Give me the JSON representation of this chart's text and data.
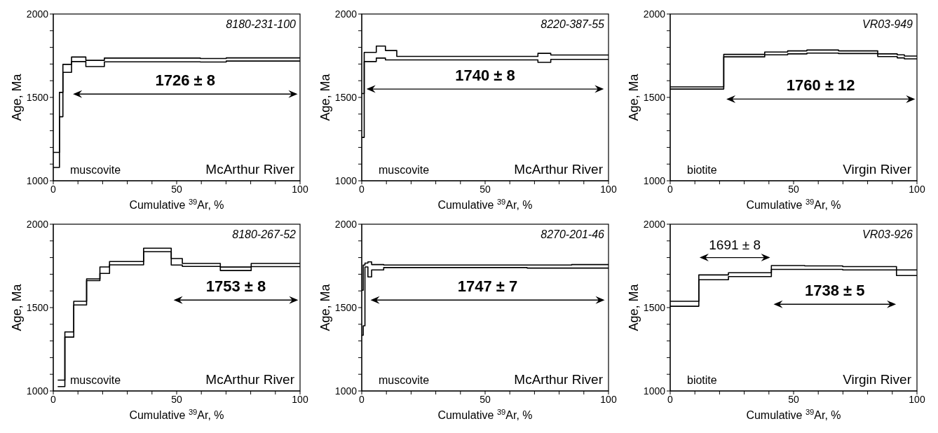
{
  "chart_data": [
    {
      "type": "step",
      "title": "8180-231-100",
      "xlabel": "Cumulative $^{39}$Ar, %",
      "ylabel": "Age, Ma",
      "xlim": [
        0,
        100
      ],
      "xticks": [
        0,
        {
          "value": 10,
          "label": null
        },
        {
          "value": 20,
          "label": null
        },
        {
          "value": 30,
          "label": null
        },
        {
          "value": 40,
          "label": null
        },
        50,
        {
          "value": 60,
          "label": null
        },
        {
          "value": 70,
          "label": null
        },
        {
          "value": 80,
          "label": null
        },
        {
          "value": 90,
          "label": null
        },
        100
      ],
      "ylim": [
        1000,
        2000
      ],
      "yticks": [
        1000,
        {
          "value": 1100,
          "label": null
        },
        {
          "value": 1200,
          "label": null
        },
        {
          "value": 1300,
          "label": null
        },
        {
          "value": 1400,
          "label": null
        },
        1500,
        {
          "value": 1600,
          "label": null
        },
        {
          "value": 1700,
          "label": null
        },
        {
          "value": 1800,
          "label": null
        },
        {
          "value": 1900,
          "label": null
        },
        2000
      ],
      "grid": false,
      "legend": false,
      "marker": "none",
      "line_style": "solid",
      "x": [
        0,
        2.5,
        3.9,
        7.4,
        13.2,
        20.7,
        59.6,
        70.1,
        100
      ],
      "series": [
        {
          "color": "#000000",
          "values": [
            1170,
            1530,
            1698,
            1742,
            1722,
            1736,
            1733,
            1737,
            1737
          ]
        },
        {
          "color": "#000000",
          "values": [
            1080,
            1384,
            1650,
            1715,
            1685,
            1713,
            1712,
            1718,
            1718
          ]
        }
      ],
      "annotations": [
        "muscovite",
        "McArthur River",
        "1726 ± 8"
      ]
    },
    {
      "type": "step",
      "title": "8220-387-55",
      "xlabel": "Cumulative $^{39}$Ar, %",
      "ylabel": "Age, Ma",
      "xlim": [
        0,
        100
      ],
      "xticks": [
        0,
        {
          "value": 10,
          "label": null
        },
        {
          "value": 20,
          "label": null
        },
        {
          "value": 30,
          "label": null
        },
        {
          "value": 40,
          "label": null
        },
        50,
        {
          "value": 60,
          "label": null
        },
        {
          "value": 70,
          "label": null
        },
        {
          "value": 80,
          "label": null
        },
        {
          "value": 90,
          "label": null
        },
        100
      ],
      "ylim": [
        1000,
        2000
      ],
      "yticks": [
        1000,
        {
          "value": 1100,
          "label": null
        },
        {
          "value": 1200,
          "label": null
        },
        {
          "value": 1300,
          "label": null
        },
        {
          "value": 1400,
          "label": null
        },
        1500,
        {
          "value": 1600,
          "label": null
        },
        {
          "value": 1700,
          "label": null
        },
        {
          "value": 1800,
          "label": null
        },
        {
          "value": 1900,
          "label": null
        },
        2000
      ],
      "grid": false,
      "legend": false,
      "marker": "none",
      "line_style": "solid",
      "x": [
        0,
        1,
        5.9,
        9.6,
        14.2,
        71.4,
        76.6,
        100
      ],
      "series": [
        {
          "color": "#000000",
          "values": [
            1523,
            1770,
            1808,
            1781,
            1746,
            1764,
            1754,
            1754
          ]
        },
        {
          "color": "#000000",
          "values": [
            1260,
            1715,
            1736,
            1725,
            1725,
            1710,
            1728,
            1728
          ]
        }
      ],
      "annotations": [
        "muscovite",
        "McArthur River",
        "1740 ± 8"
      ]
    },
    {
      "type": "step",
      "title": "VR03-949",
      "xlabel": "Cumulative $^{39}$Ar, %",
      "ylabel": "Age, Ma",
      "xlim": [
        0,
        100
      ],
      "xticks": [
        0,
        {
          "value": 10,
          "label": null
        },
        {
          "value": 20,
          "label": null
        },
        {
          "value": 30,
          "label": null
        },
        {
          "value": 40,
          "label": null
        },
        50,
        {
          "value": 60,
          "label": null
        },
        {
          "value": 70,
          "label": null
        },
        {
          "value": 80,
          "label": null
        },
        {
          "value": 90,
          "label": null
        },
        100
      ],
      "ylim": [
        1000,
        2000
      ],
      "yticks": [
        1000,
        {
          "value": 1100,
          "label": null
        },
        {
          "value": 1200,
          "label": null
        },
        {
          "value": 1300,
          "label": null
        },
        {
          "value": 1400,
          "label": null
        },
        1500,
        {
          "value": 1600,
          "label": null
        },
        {
          "value": 1700,
          "label": null
        },
        {
          "value": 1800,
          "label": null
        },
        {
          "value": 1900,
          "label": null
        },
        2000
      ],
      "grid": false,
      "legend": false,
      "marker": "none",
      "line_style": "solid",
      "x": [
        0,
        21.7,
        38.3,
        47.6,
        55.4,
        68.2,
        84.1,
        92,
        94.9,
        100
      ],
      "series": [
        {
          "color": "#000000",
          "values": [
            1563,
            1758,
            1772,
            1779,
            1784,
            1779,
            1761,
            1755,
            1748,
            1748
          ]
        },
        {
          "color": "#000000",
          "values": [
            1550,
            1743,
            1755,
            1761,
            1766,
            1763,
            1745,
            1737,
            1731,
            1731
          ]
        }
      ],
      "annotations": [
        "biotite",
        "Virgin River",
        "1760 ± 12"
      ]
    },
    {
      "type": "step",
      "title": "8180-267-52",
      "xlabel": "Cumulative $^{39}$Ar, %",
      "ylabel": "Age, Ma",
      "xlim": [
        0,
        100
      ],
      "xticks": [
        0,
        {
          "value": 10,
          "label": null
        },
        {
          "value": 20,
          "label": null
        },
        {
          "value": 30,
          "label": null
        },
        {
          "value": 40,
          "label": null
        },
        50,
        {
          "value": 60,
          "label": null
        },
        {
          "value": 70,
          "label": null
        },
        {
          "value": 80,
          "label": null
        },
        {
          "value": 90,
          "label": null
        },
        100
      ],
      "ylim": [
        1000,
        2000
      ],
      "yticks": [
        1000,
        {
          "value": 1100,
          "label": null
        },
        {
          "value": 1200,
          "label": null
        },
        {
          "value": 1300,
          "label": null
        },
        {
          "value": 1400,
          "label": null
        },
        1500,
        {
          "value": 1600,
          "label": null
        },
        {
          "value": 1700,
          "label": null
        },
        {
          "value": 1800,
          "label": null
        },
        {
          "value": 1900,
          "label": null
        },
        2000
      ],
      "grid": false,
      "legend": false,
      "marker": "none",
      "line_style": "solid",
      "x": [
        1.8,
        4.7,
        8.3,
        13.5,
        18.9,
        22.8,
        36.6,
        47.8,
        52.3,
        67.7,
        80.2,
        100
      ],
      "series": [
        {
          "color": "#000000",
          "values": [
            1065,
            1354,
            1538,
            1672,
            1744,
            1776,
            1856,
            1794,
            1765,
            1743,
            1765,
            1765
          ]
        },
        {
          "color": "#000000",
          "values": [
            1026,
            1323,
            1516,
            1662,
            1705,
            1756,
            1835,
            1755,
            1747,
            1722,
            1746,
            1746
          ]
        }
      ],
      "annotations": [
        "muscovite",
        "McArthur River",
        "1753 ± 8"
      ]
    },
    {
      "type": "step",
      "title": "8270-201-46",
      "xlabel": "Cumulative $^{39}$Ar, %",
      "ylabel": "Age, Ma",
      "xlim": [
        0,
        100
      ],
      "xticks": [
        0,
        {
          "value": 10,
          "label": null
        },
        {
          "value": 20,
          "label": null
        },
        {
          "value": 30,
          "label": null
        },
        {
          "value": 40,
          "label": null
        },
        50,
        {
          "value": 60,
          "label": null
        },
        {
          "value": 70,
          "label": null
        },
        {
          "value": 80,
          "label": null
        },
        {
          "value": 90,
          "label": null
        },
        100
      ],
      "ylim": [
        1000,
        2000
      ],
      "yticks": [
        1000,
        {
          "value": 1100,
          "label": null
        },
        {
          "value": 1200,
          "label": null
        },
        {
          "value": 1300,
          "label": null
        },
        {
          "value": 1400,
          "label": null
        },
        1500,
        {
          "value": 1600,
          "label": null
        },
        {
          "value": 1700,
          "label": null
        },
        {
          "value": 1800,
          "label": null
        },
        {
          "value": 1900,
          "label": null
        },
        2000
      ],
      "grid": false,
      "legend": false,
      "marker": "none",
      "line_style": "solid",
      "x": [
        0,
        0.6,
        1.3,
        2.5,
        4,
        8.9,
        67,
        85.1,
        100
      ],
      "series": [
        {
          "color": "#000000",
          "values": [
            1604,
            1755,
            1767,
            1774,
            1758,
            1755,
            1755,
            1758,
            1758
          ]
        },
        {
          "color": "#000000",
          "values": [
            1334,
            1391,
            1744,
            1684,
            1726,
            1740,
            1737,
            1737,
            1737
          ]
        }
      ],
      "annotations": [
        "muscovite",
        "McArthur River",
        "1747 ± 7"
      ]
    },
    {
      "type": "step",
      "title": "VR03-926",
      "xlabel": "Cumulative $^{39}$Ar, %",
      "ylabel": "Age, Ma",
      "xlim": [
        0,
        100
      ],
      "xticks": [
        0,
        {
          "value": 10,
          "label": null
        },
        {
          "value": 20,
          "label": null
        },
        {
          "value": 30,
          "label": null
        },
        {
          "value": 40,
          "label": null
        },
        50,
        {
          "value": 60,
          "label": null
        },
        {
          "value": 70,
          "label": null
        },
        {
          "value": 80,
          "label": null
        },
        {
          "value": 90,
          "label": null
        },
        100
      ],
      "ylim": [
        1000,
        2000
      ],
      "yticks": [
        1000,
        {
          "value": 1100,
          "label": null
        },
        {
          "value": 1200,
          "label": null
        },
        {
          "value": 1300,
          "label": null
        },
        {
          "value": 1400,
          "label": null
        },
        1500,
        {
          "value": 1600,
          "label": null
        },
        {
          "value": 1700,
          "label": null
        },
        {
          "value": 1800,
          "label": null
        },
        {
          "value": 1900,
          "label": null
        },
        2000
      ],
      "grid": false,
      "legend": false,
      "marker": "none",
      "line_style": "solid",
      "x": [
        0,
        11.6,
        23.6,
        41,
        54.5,
        69.9,
        91.7,
        100
      ],
      "series": [
        {
          "color": "#000000",
          "values": [
            1538,
            1696,
            1709,
            1752,
            1750,
            1746,
            1726,
            1726
          ]
        },
        {
          "color": "#000000",
          "values": [
            1508,
            1667,
            1686,
            1729,
            1729,
            1726,
            1692,
            1692
          ]
        }
      ],
      "annotations": [
        "biotite",
        "Virgin River",
        "1691 ± 8",
        "1738 ± 5"
      ]
    }
  ]
}
